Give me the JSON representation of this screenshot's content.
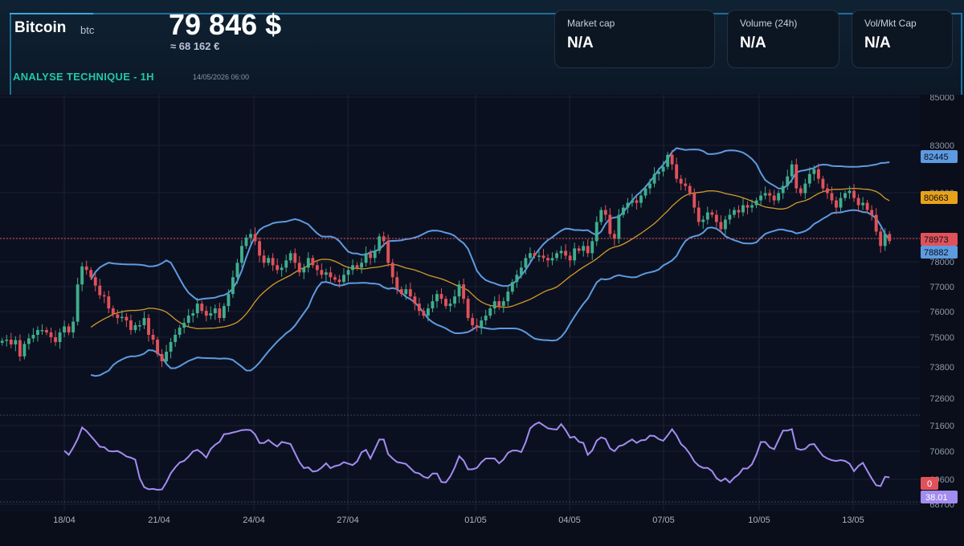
{
  "header": {
    "coin_name": "Bitcoin",
    "coin_symbol": "btc",
    "price": "79 846 $",
    "price_eur": "≈ 68 162 €",
    "analysis_label": "ANALYSE TECHNIQUE - 1H",
    "analysis_date": "14/05/2026 06:00"
  },
  "stats": [
    {
      "label": "Market cap",
      "value": "N/A"
    },
    {
      "label": "Volume (24h)",
      "value": "N/A"
    },
    {
      "label": "Vol/Mkt Cap",
      "value": "N/A"
    }
  ],
  "colors": {
    "background": "#0a0e1a",
    "candle_up": "#3fae8d",
    "candle_down": "#e0525a",
    "bollinger": "#5d9be0",
    "moving_average": "#d39a2a",
    "rsi": "#a38cf0",
    "price_line": "#e0525a"
  },
  "chart_data": {
    "type": "candlestick",
    "y_ticks": [
      85000,
      83000,
      81000,
      79000,
      78000,
      77000,
      76000,
      75000,
      73800,
      72600,
      71600,
      70600,
      69600,
      68700
    ],
    "ylim": [
      68700,
      85000
    ],
    "x_ticks": [
      "18/04",
      "21/04",
      "24/04",
      "27/04",
      "01/05",
      "04/05",
      "07/05",
      "10/05",
      "13/05"
    ],
    "price_labels": {
      "bollinger_upper": "82445",
      "moving_average": "80663",
      "last_price": "78973",
      "bollinger_lower": "78882"
    },
    "rsi_labels": {
      "zero": "0",
      "value": "38.01"
    },
    "candles_close": [
      74850,
      74900,
      74700,
      74880,
      74200,
      74720,
      74950,
      75100,
      75300,
      75300,
      75200,
      75000,
      74800,
      75200,
      75450,
      75200,
      75650,
      77200,
      77950,
      77800,
      77500,
      77150,
      76750,
      76700,
      76200,
      75950,
      75800,
      75850,
      75700,
      75300,
      75500,
      75500,
      75800,
      75100,
      74900,
      74300,
      74000,
      74400,
      74800,
      75100,
      75400,
      75600,
      75900,
      76000,
      76400,
      76100,
      75900,
      76000,
      76200,
      75800,
      76300,
      76800,
      77500,
      78100,
      78800,
      79150,
      79300,
      79000,
      78400,
      78100,
      78300,
      78000,
      77800,
      77900,
      78200,
      78500,
      78100,
      77700,
      77900,
      78300,
      78000,
      77800,
      77600,
      77700,
      77500,
      77400,
      77300,
      77600,
      77800,
      78000,
      77900,
      78100,
      78500,
      78300,
      78600,
      79200,
      79000,
      78100,
      77500,
      77000,
      76800,
      77000,
      76700,
      76400,
      76100,
      75900,
      76200,
      76500,
      76800,
      76600,
      76300,
      76400,
      76700,
      77200,
      76600,
      75800,
      75500,
      75400,
      75700,
      75900,
      76200,
      76500,
      76300,
      76500,
      76900,
      77300,
      77600,
      77900,
      78300,
      78500,
      78400,
      78400,
      78300,
      78200,
      78300,
      78500,
      78600,
      78400,
      78200,
      78700,
      78600,
      78800,
      78500,
      79000,
      79800,
      80300,
      80100,
      79300,
      79100,
      80100,
      80400,
      80600,
      80700,
      80600,
      80900,
      81200,
      81400,
      81800,
      81900,
      82100,
      82600,
      82200,
      81600,
      81400,
      81300,
      81000,
      80400,
      79800,
      79900,
      80200,
      80100,
      79800,
      79500,
      79900,
      80100,
      80300,
      80200,
      80500,
      80400,
      80500,
      80700,
      80900,
      81000,
      80900,
      80700,
      81000,
      81300,
      81700,
      82200,
      81200,
      81000,
      81400,
      81800,
      82000,
      81600,
      81200,
      81000,
      80700,
      80400,
      80800,
      81000,
      81100,
      80800,
      80500,
      80600,
      80300,
      80100,
      79400,
      78800,
      79300,
      79000
    ]
  }
}
